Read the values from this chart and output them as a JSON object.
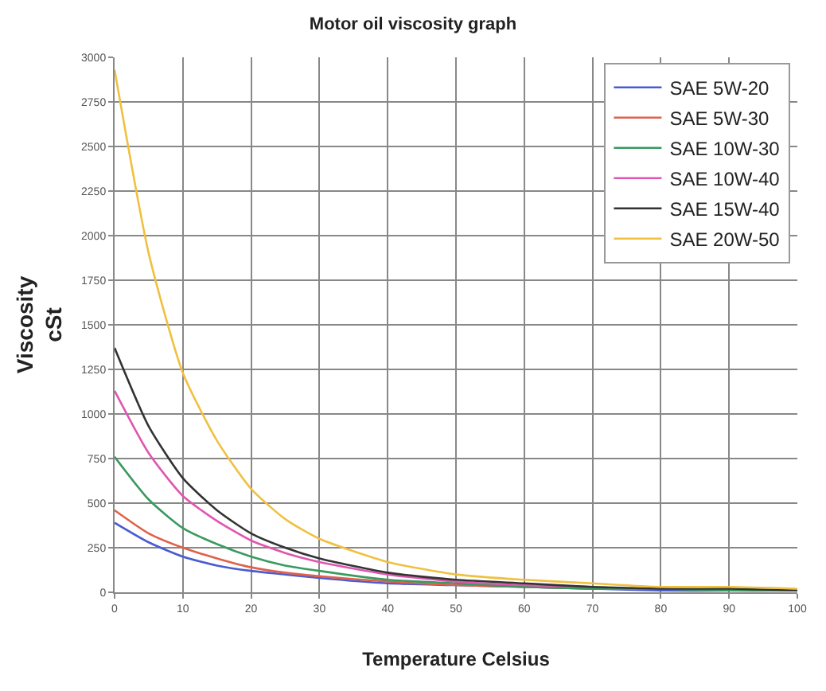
{
  "chart_data": {
    "type": "line",
    "title": "Motor oil viscosity graph",
    "xlabel": "Temperature Celsius",
    "ylabel": "Viscosity\ncSt",
    "x": [
      0,
      5,
      10,
      15,
      20,
      25,
      30,
      40,
      50,
      60,
      70,
      80,
      90,
      100
    ],
    "series": [
      {
        "name": "SAE 5W-20",
        "color": "#4a5cd0",
        "values": [
          390,
          280,
          200,
          150,
          120,
          100,
          80,
          50,
          40,
          30,
          20,
          10,
          10,
          10
        ]
      },
      {
        "name": "SAE 5W-30",
        "color": "#e0604a",
        "values": [
          460,
          330,
          250,
          190,
          140,
          110,
          90,
          60,
          40,
          30,
          20,
          20,
          null,
          null
        ]
      },
      {
        "name": "SAE 10W-30",
        "color": "#3a9a60",
        "values": [
          760,
          520,
          360,
          270,
          200,
          150,
          120,
          70,
          50,
          30,
          20,
          20,
          10,
          10
        ]
      },
      {
        "name": "SAE 10W-40",
        "color": "#e055b0",
        "values": [
          1130,
          780,
          540,
          400,
          290,
          220,
          170,
          100,
          60,
          40,
          30,
          null,
          null,
          null
        ]
      },
      {
        "name": "SAE 15W-40",
        "color": "#333333",
        "values": [
          1370,
          930,
          640,
          460,
          330,
          250,
          190,
          110,
          70,
          50,
          30,
          20,
          20,
          10
        ]
      },
      {
        "name": "SAE 20W-50",
        "color": "#f0c040",
        "values": [
          2930,
          1900,
          1230,
          850,
          580,
          410,
          300,
          170,
          100,
          70,
          50,
          30,
          30,
          20
        ]
      }
    ],
    "xlim": [
      0,
      100
    ],
    "xticks": [
      0,
      10,
      20,
      30,
      40,
      50,
      60,
      70,
      80,
      90,
      100
    ],
    "ylim": [
      0,
      3000
    ],
    "yticks": [
      0,
      250,
      500,
      750,
      1000,
      1250,
      1500,
      1750,
      2000,
      2250,
      2500,
      2750,
      3000
    ],
    "grid": true,
    "legend": "top right",
    "marker": "none",
    "line_style": "solid"
  }
}
